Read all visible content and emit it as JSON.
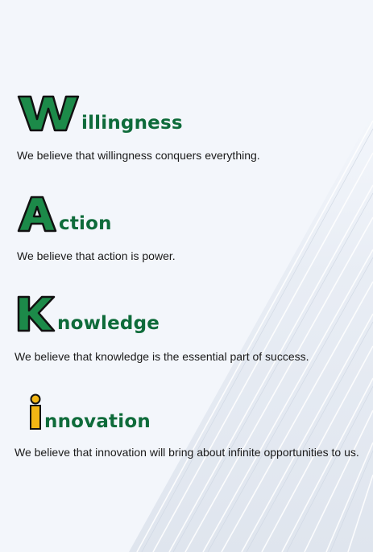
{
  "values": [
    {
      "initial": "W",
      "rest": "illingness",
      "description": "We believe that willingness conquers everything."
    },
    {
      "initial": "A",
      "rest": "ction",
      "description": "We believe that action is power."
    },
    {
      "initial": "K",
      "rest": "nowledge",
      "description": "We believe that knowledge is the essential part of success."
    },
    {
      "initial": "I",
      "rest": "nnovation",
      "description": "We believe that innovation will bring about infinite opportunities to us."
    }
  ],
  "colors": {
    "background": "#f3f6fb",
    "brand_green": "#0e6b3a",
    "letter_fill_green": "#1c8a49",
    "letter_stroke": "#111111",
    "accent_yellow": "#f2b614"
  }
}
